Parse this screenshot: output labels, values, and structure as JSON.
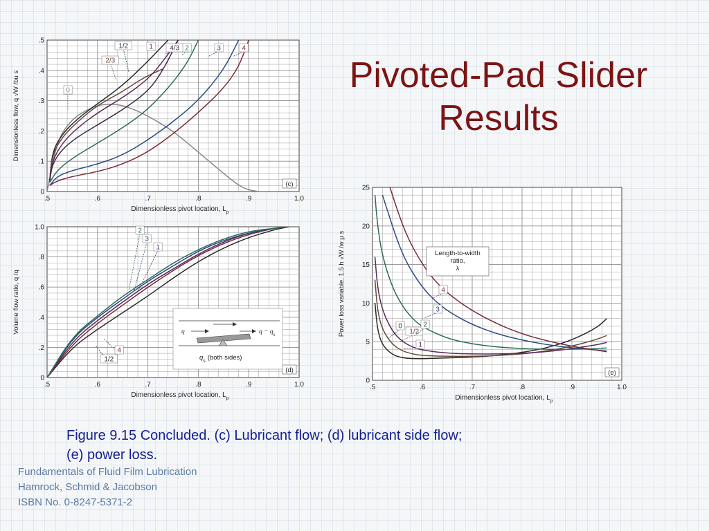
{
  "slide": {
    "title_line1": "Pivoted-Pad Slider",
    "title_line2": "Results",
    "caption_line1": "Figure 9.15   Concluded. (c) Lubricant flow; (d) lubricant side flow;",
    "caption_line2": "(e) power loss.",
    "credits": [
      "Fundamentals of Fluid Film Lubrication",
      "Hamrock, Schmid & Jacobson",
      "ISBN No. 0-8247-5371-2"
    ]
  },
  "colors": {
    "title": "#7c1414",
    "caption": "#14208f",
    "credits": "#5a78a0",
    "grid": "#8e8e8e",
    "curve_0": "#888888",
    "curve_1_2": "#2a2a2a",
    "curve_2_3": "#6a4a3a",
    "curve_1": "#5a2a5a",
    "curve_4_3": "#3a2a4a",
    "curve_2": "#2e6a58",
    "curve_3": "#2a4a80",
    "curve_4": "#7a2a3a"
  },
  "chart_data": [
    {
      "id": "c",
      "type": "line",
      "panel_label": "(c)",
      "xlabel": "Dimensionless pivot location,  L",
      "xlabel_sub": "p",
      "ylabel": "Dimensionless flow,  q √W /bu s",
      "xlim": [
        0.5,
        1.0
      ],
      "ylim": [
        0,
        0.5
      ],
      "x_ticks": [
        0.5,
        0.6,
        0.7,
        0.8,
        0.9,
        1.0
      ],
      "x_tick_labels": [
        ".5",
        ".6",
        ".7",
        ".8",
        ".9",
        "1.0"
      ],
      "y_ticks": [
        0,
        0.1,
        0.2,
        0.3,
        0.4,
        0.5
      ],
      "y_tick_labels": [
        "0",
        ".1",
        ".2",
        ".3",
        ".4",
        ".5"
      ],
      "grid": true,
      "series": [
        {
          "name": "0",
          "color_key": "curve_0",
          "x": [
            0.5,
            0.52,
            0.55,
            0.58,
            0.6,
            0.63,
            0.66,
            0.7,
            0.75,
            0.8,
            0.85,
            0.88,
            0.9,
            0.92
          ],
          "y": [
            0,
            0.17,
            0.24,
            0.27,
            0.285,
            0.29,
            0.28,
            0.25,
            0.2,
            0.13,
            0.06,
            0.02,
            0.005,
            0
          ]
        },
        {
          "name": "1/2",
          "color_key": "curve_1_2",
          "x": [
            0.505,
            0.51,
            0.53,
            0.56,
            0.6,
            0.65,
            0.7,
            0.74
          ],
          "y": [
            0.03,
            0.13,
            0.19,
            0.24,
            0.29,
            0.35,
            0.43,
            0.5
          ]
        },
        {
          "name": "2/3",
          "color_key": "curve_2_3",
          "x": [
            0.505,
            0.51,
            0.53,
            0.56,
            0.6,
            0.65,
            0.69,
            0.73
          ],
          "y": [
            0.03,
            0.12,
            0.18,
            0.23,
            0.285,
            0.33,
            0.375,
            0.405
          ]
        },
        {
          "name": "1",
          "color_key": "curve_1",
          "x": [
            0.505,
            0.51,
            0.53,
            0.56,
            0.6,
            0.65,
            0.7,
            0.73,
            0.76
          ],
          "y": [
            0.03,
            0.1,
            0.16,
            0.21,
            0.26,
            0.31,
            0.37,
            0.43,
            0.5
          ]
        },
        {
          "name": "4/3",
          "color_key": "curve_4_3",
          "x": [
            0.505,
            0.51,
            0.53,
            0.56,
            0.6,
            0.65,
            0.7,
            0.73,
            0.76
          ],
          "y": [
            0.03,
            0.09,
            0.14,
            0.18,
            0.22,
            0.27,
            0.33,
            0.4,
            0.5
          ]
        },
        {
          "name": "2",
          "color_key": "curve_2",
          "x": [
            0.505,
            0.52,
            0.55,
            0.6,
            0.65,
            0.7,
            0.75,
            0.78,
            0.8
          ],
          "y": [
            0.03,
            0.07,
            0.11,
            0.16,
            0.21,
            0.27,
            0.36,
            0.43,
            0.5
          ]
        },
        {
          "name": "3",
          "color_key": "curve_3",
          "x": [
            0.505,
            0.52,
            0.55,
            0.6,
            0.65,
            0.7,
            0.75,
            0.8,
            0.85,
            0.88
          ],
          "y": [
            0.02,
            0.05,
            0.07,
            0.09,
            0.12,
            0.17,
            0.23,
            0.3,
            0.4,
            0.5
          ]
        },
        {
          "name": "4",
          "color_key": "curve_4",
          "x": [
            0.505,
            0.52,
            0.55,
            0.6,
            0.65,
            0.7,
            0.75,
            0.8,
            0.85,
            0.88,
            0.9
          ],
          "y": [
            0.02,
            0.035,
            0.05,
            0.065,
            0.09,
            0.13,
            0.19,
            0.26,
            0.34,
            0.41,
            0.5
          ]
        }
      ],
      "curve_labels": [
        "0",
        "1/2",
        "2/3",
        "1",
        "4/3",
        "2",
        "3",
        "4"
      ]
    },
    {
      "id": "d",
      "type": "line",
      "panel_label": "(d)",
      "xlabel": "Dimensionless pivot location,  L",
      "xlabel_sub": "p",
      "ylabel": "Volume flow ratio,  q /q",
      "xlim": [
        0.5,
        1.0
      ],
      "ylim": [
        0,
        1.0
      ],
      "x_ticks": [
        0.5,
        0.6,
        0.7,
        0.8,
        0.9,
        1.0
      ],
      "x_tick_labels": [
        ".5",
        ".6",
        ".7",
        ".8",
        ".9",
        "1.0"
      ],
      "y_ticks": [
        0,
        0.2,
        0.4,
        0.6,
        0.8,
        1.0
      ],
      "y_tick_labels": [
        "0",
        ".2",
        ".4",
        ".6",
        ".8",
        "1.0"
      ],
      "grid": true,
      "series": [
        {
          "name": "1/2",
          "color_key": "curve_1_2",
          "x": [
            0.5,
            0.55,
            0.6,
            0.65,
            0.7,
            0.75,
            0.8,
            0.85,
            0.9,
            0.95,
            0.98
          ],
          "y": [
            0,
            0.2,
            0.32,
            0.43,
            0.54,
            0.66,
            0.77,
            0.86,
            0.93,
            0.98,
            1.0
          ]
        },
        {
          "name": "4",
          "color_key": "curve_4",
          "x": [
            0.5,
            0.55,
            0.6,
            0.65,
            0.7,
            0.75,
            0.8,
            0.85,
            0.9,
            0.95,
            0.98
          ],
          "y": [
            0,
            0.22,
            0.36,
            0.48,
            0.6,
            0.71,
            0.81,
            0.89,
            0.95,
            0.99,
            1.0
          ]
        },
        {
          "name": "1",
          "color_key": "curve_1",
          "x": [
            0.5,
            0.55,
            0.6,
            0.65,
            0.7,
            0.75,
            0.8,
            0.85,
            0.9,
            0.95,
            0.98
          ],
          "y": [
            0,
            0.24,
            0.38,
            0.5,
            0.62,
            0.72,
            0.82,
            0.9,
            0.96,
            0.99,
            1.0
          ]
        },
        {
          "name": "3",
          "color_key": "curve_3",
          "x": [
            0.5,
            0.55,
            0.6,
            0.65,
            0.7,
            0.75,
            0.8,
            0.85,
            0.9,
            0.95,
            0.98
          ],
          "y": [
            0,
            0.26,
            0.4,
            0.52,
            0.64,
            0.74,
            0.84,
            0.91,
            0.96,
            0.99,
            1.0
          ]
        },
        {
          "name": "2",
          "color_key": "curve_2",
          "x": [
            0.5,
            0.55,
            0.6,
            0.65,
            0.7,
            0.75,
            0.8,
            0.85,
            0.9,
            0.95,
            0.98
          ],
          "y": [
            0,
            0.27,
            0.41,
            0.54,
            0.65,
            0.76,
            0.85,
            0.92,
            0.97,
            0.99,
            1.0
          ]
        }
      ],
      "curve_labels": [
        "2",
        "3",
        "1",
        "4",
        "1/2"
      ],
      "inset": {
        "q_label": "q",
        "q_minus_qs_label": "q − q",
        "qs_label": "q",
        "both_sides_label": "(both sides)",
        "sub_s": "s"
      }
    },
    {
      "id": "e",
      "type": "line",
      "panel_label": "(e)",
      "xlabel": "Dimensionless pivot location,  L",
      "xlabel_sub": "p",
      "ylabel": "Power loss variable,  1.5 h √W /w μ s",
      "xlim": [
        0.5,
        1.0
      ],
      "ylim": [
        0,
        25
      ],
      "x_ticks": [
        0.5,
        0.6,
        0.7,
        0.8,
        0.9,
        1.0
      ],
      "x_tick_labels": [
        ".5",
        ".6",
        ".7",
        ".8",
        ".9",
        "1.0"
      ],
      "y_ticks": [
        0,
        5,
        10,
        15,
        20,
        25
      ],
      "y_tick_labels": [
        "0",
        "5",
        "10",
        "15",
        "20",
        "25"
      ],
      "grid": true,
      "legend_title": [
        "Length-to-width",
        "ratio,",
        "λ"
      ],
      "series": [
        {
          "name": "0",
          "color_key": "curve_1_2",
          "x": [
            0.505,
            0.51,
            0.52,
            0.54,
            0.56,
            0.58,
            0.6,
            0.65,
            0.7,
            0.75,
            0.8,
            0.85,
            0.9,
            0.95,
            0.97
          ],
          "y": [
            10,
            6.5,
            4.5,
            3.3,
            2.9,
            2.8,
            2.8,
            2.9,
            3.0,
            3.2,
            3.6,
            4.2,
            5.2,
            6.8,
            8.0
          ]
        },
        {
          "name": "1/2",
          "color_key": "curve_2_3",
          "x": [
            0.505,
            0.51,
            0.52,
            0.54,
            0.56,
            0.58,
            0.6,
            0.65,
            0.7,
            0.75,
            0.8,
            0.85,
            0.9,
            0.95,
            0.97
          ],
          "y": [
            13,
            9,
            6.5,
            4.6,
            3.8,
            3.4,
            3.2,
            3.1,
            3.1,
            3.2,
            3.4,
            3.8,
            4.4,
            5.3,
            5.8
          ]
        },
        {
          "name": "1",
          "color_key": "curve_1",
          "x": [
            0.505,
            0.51,
            0.52,
            0.54,
            0.56,
            0.58,
            0.6,
            0.65,
            0.7,
            0.75,
            0.8,
            0.85,
            0.9,
            0.95,
            0.97
          ],
          "y": [
            16,
            12,
            9,
            6.3,
            5.0,
            4.3,
            3.9,
            3.5,
            3.4,
            3.4,
            3.5,
            3.7,
            4.1,
            4.6,
            4.9
          ]
        },
        {
          "name": "2",
          "color_key": "curve_2",
          "x": [
            0.505,
            0.51,
            0.52,
            0.54,
            0.56,
            0.58,
            0.6,
            0.65,
            0.7,
            0.75,
            0.8,
            0.85,
            0.9,
            0.95,
            0.97
          ],
          "y": [
            24,
            20,
            16,
            12,
            9.6,
            8.0,
            6.9,
            5.4,
            4.7,
            4.3,
            4.1,
            4.0,
            4.0,
            4.1,
            4.2
          ]
        },
        {
          "name": "3",
          "color_key": "curve_3",
          "x": [
            0.52,
            0.53,
            0.55,
            0.57,
            0.6,
            0.63,
            0.66,
            0.7,
            0.75,
            0.8,
            0.85,
            0.9,
            0.95,
            0.97
          ],
          "y": [
            24,
            22,
            18,
            15,
            12,
            10,
            8.6,
            7.2,
            6.0,
            5.2,
            4.6,
            4.2,
            3.9,
            3.8
          ]
        },
        {
          "name": "4",
          "color_key": "curve_4",
          "x": [
            0.535,
            0.55,
            0.57,
            0.6,
            0.63,
            0.66,
            0.7,
            0.75,
            0.8,
            0.85,
            0.9,
            0.95,
            0.97
          ],
          "y": [
            25,
            22,
            18.5,
            15,
            12.5,
            10.8,
            9.0,
            7.3,
            6.0,
            5.1,
            4.4,
            3.9,
            3.7
          ]
        }
      ],
      "curve_labels": [
        "0",
        "1/2",
        "1",
        "2",
        "3",
        "4"
      ]
    }
  ]
}
